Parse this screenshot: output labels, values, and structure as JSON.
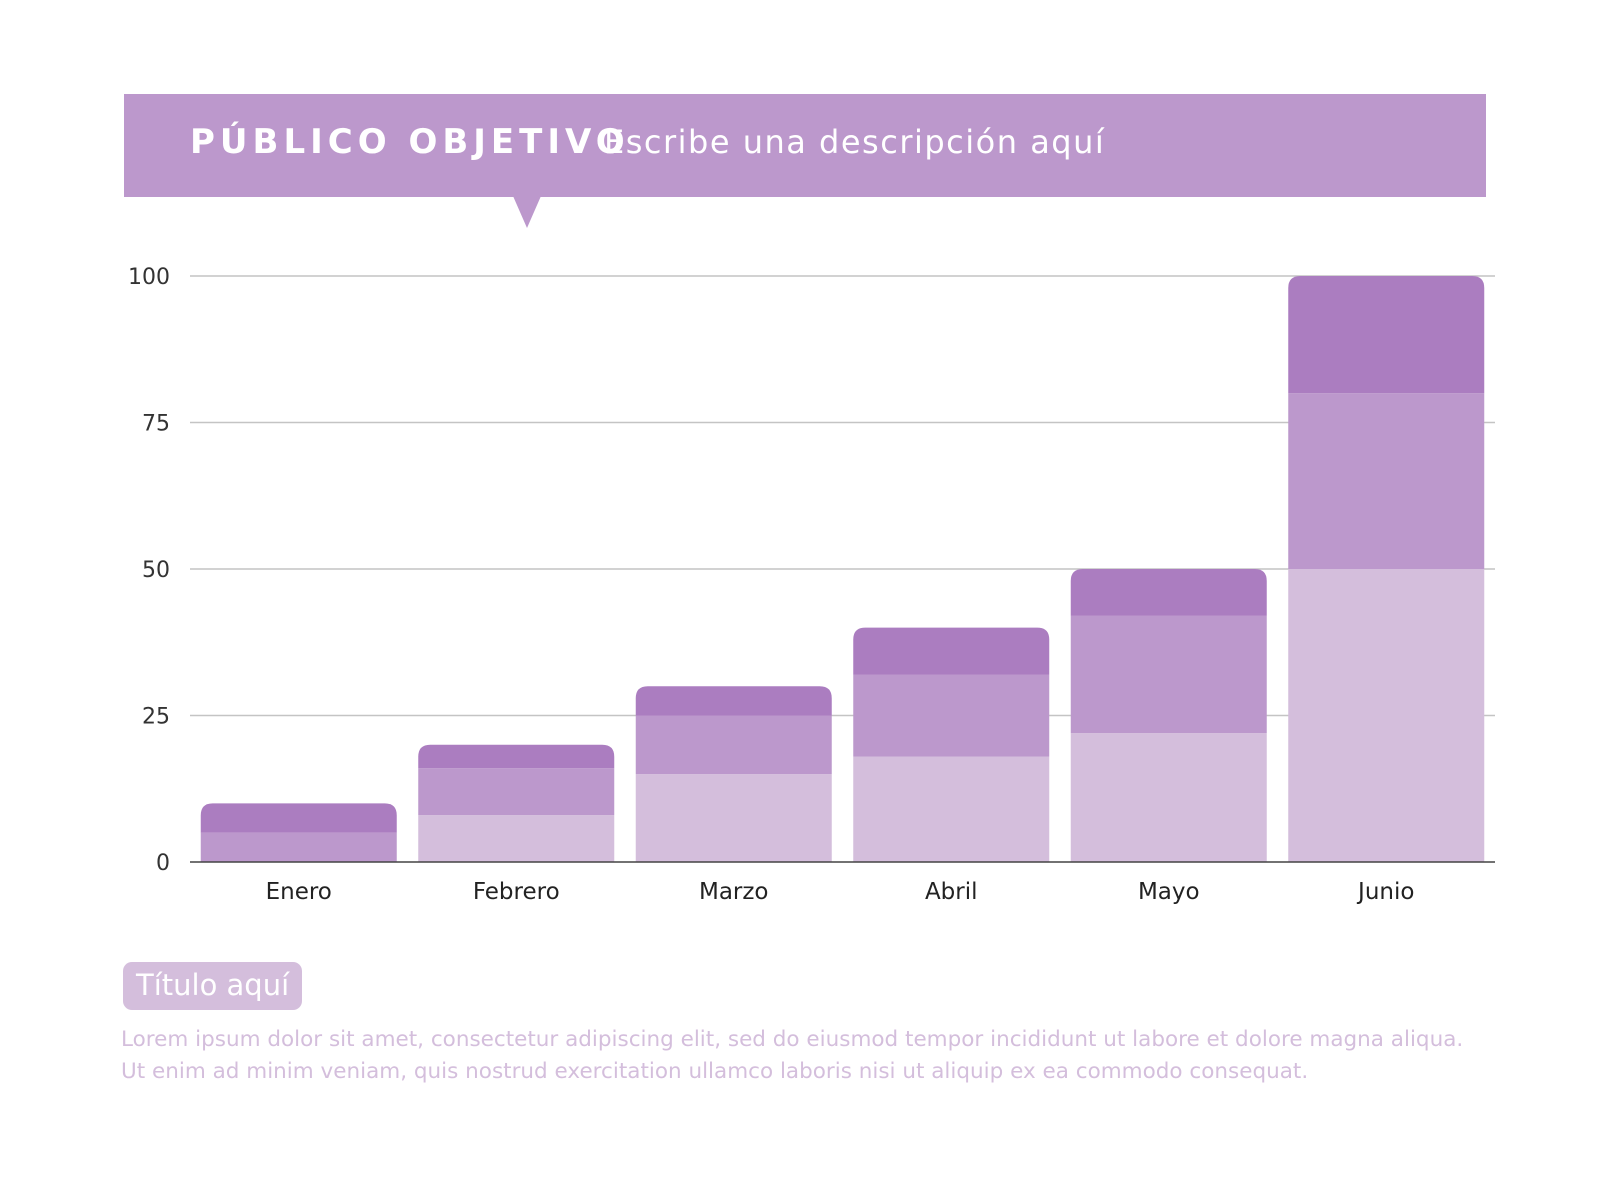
{
  "header": {
    "title": "PÚBLICO OBJETIVO",
    "description": "Escribe una descripción aquí"
  },
  "caption": {
    "title": "Título aquí",
    "lines": [
      "Lorem ipsum dolor sit amet, consectetur adipiscing elit, sed do eiusmod tempor incididunt ut labore et dolore magna aliqua.",
      "Ut enim ad minim veniam, quis nostrud exercitation ullamco laboris nisi ut aliquip ex ea commodo consequat."
    ]
  },
  "colors": {
    "banner": "#bc98cc",
    "caption_title_bg": "#d4bedc",
    "caption_text": "#d4bedc",
    "grid": "#c4c4c4"
  },
  "chart_data": {
    "type": "bar",
    "stacked": true,
    "categories": [
      "Enero",
      "Febrero",
      "Marzo",
      "Abril",
      "Mayo",
      "Junio"
    ],
    "series": [
      {
        "color": "#d4bedc",
        "values": [
          0,
          8,
          15,
          18,
          22,
          50
        ]
      },
      {
        "color": "#bc98cc",
        "values": [
          5,
          8,
          10,
          14,
          20,
          30
        ]
      },
      {
        "color": "#ab7dc0",
        "values": [
          5,
          4,
          5,
          8,
          8,
          20
        ]
      }
    ],
    "yticks": [
      0,
      25,
      50,
      75,
      100
    ],
    "ylim": [
      0,
      100
    ],
    "grid": true,
    "legend": "none"
  }
}
